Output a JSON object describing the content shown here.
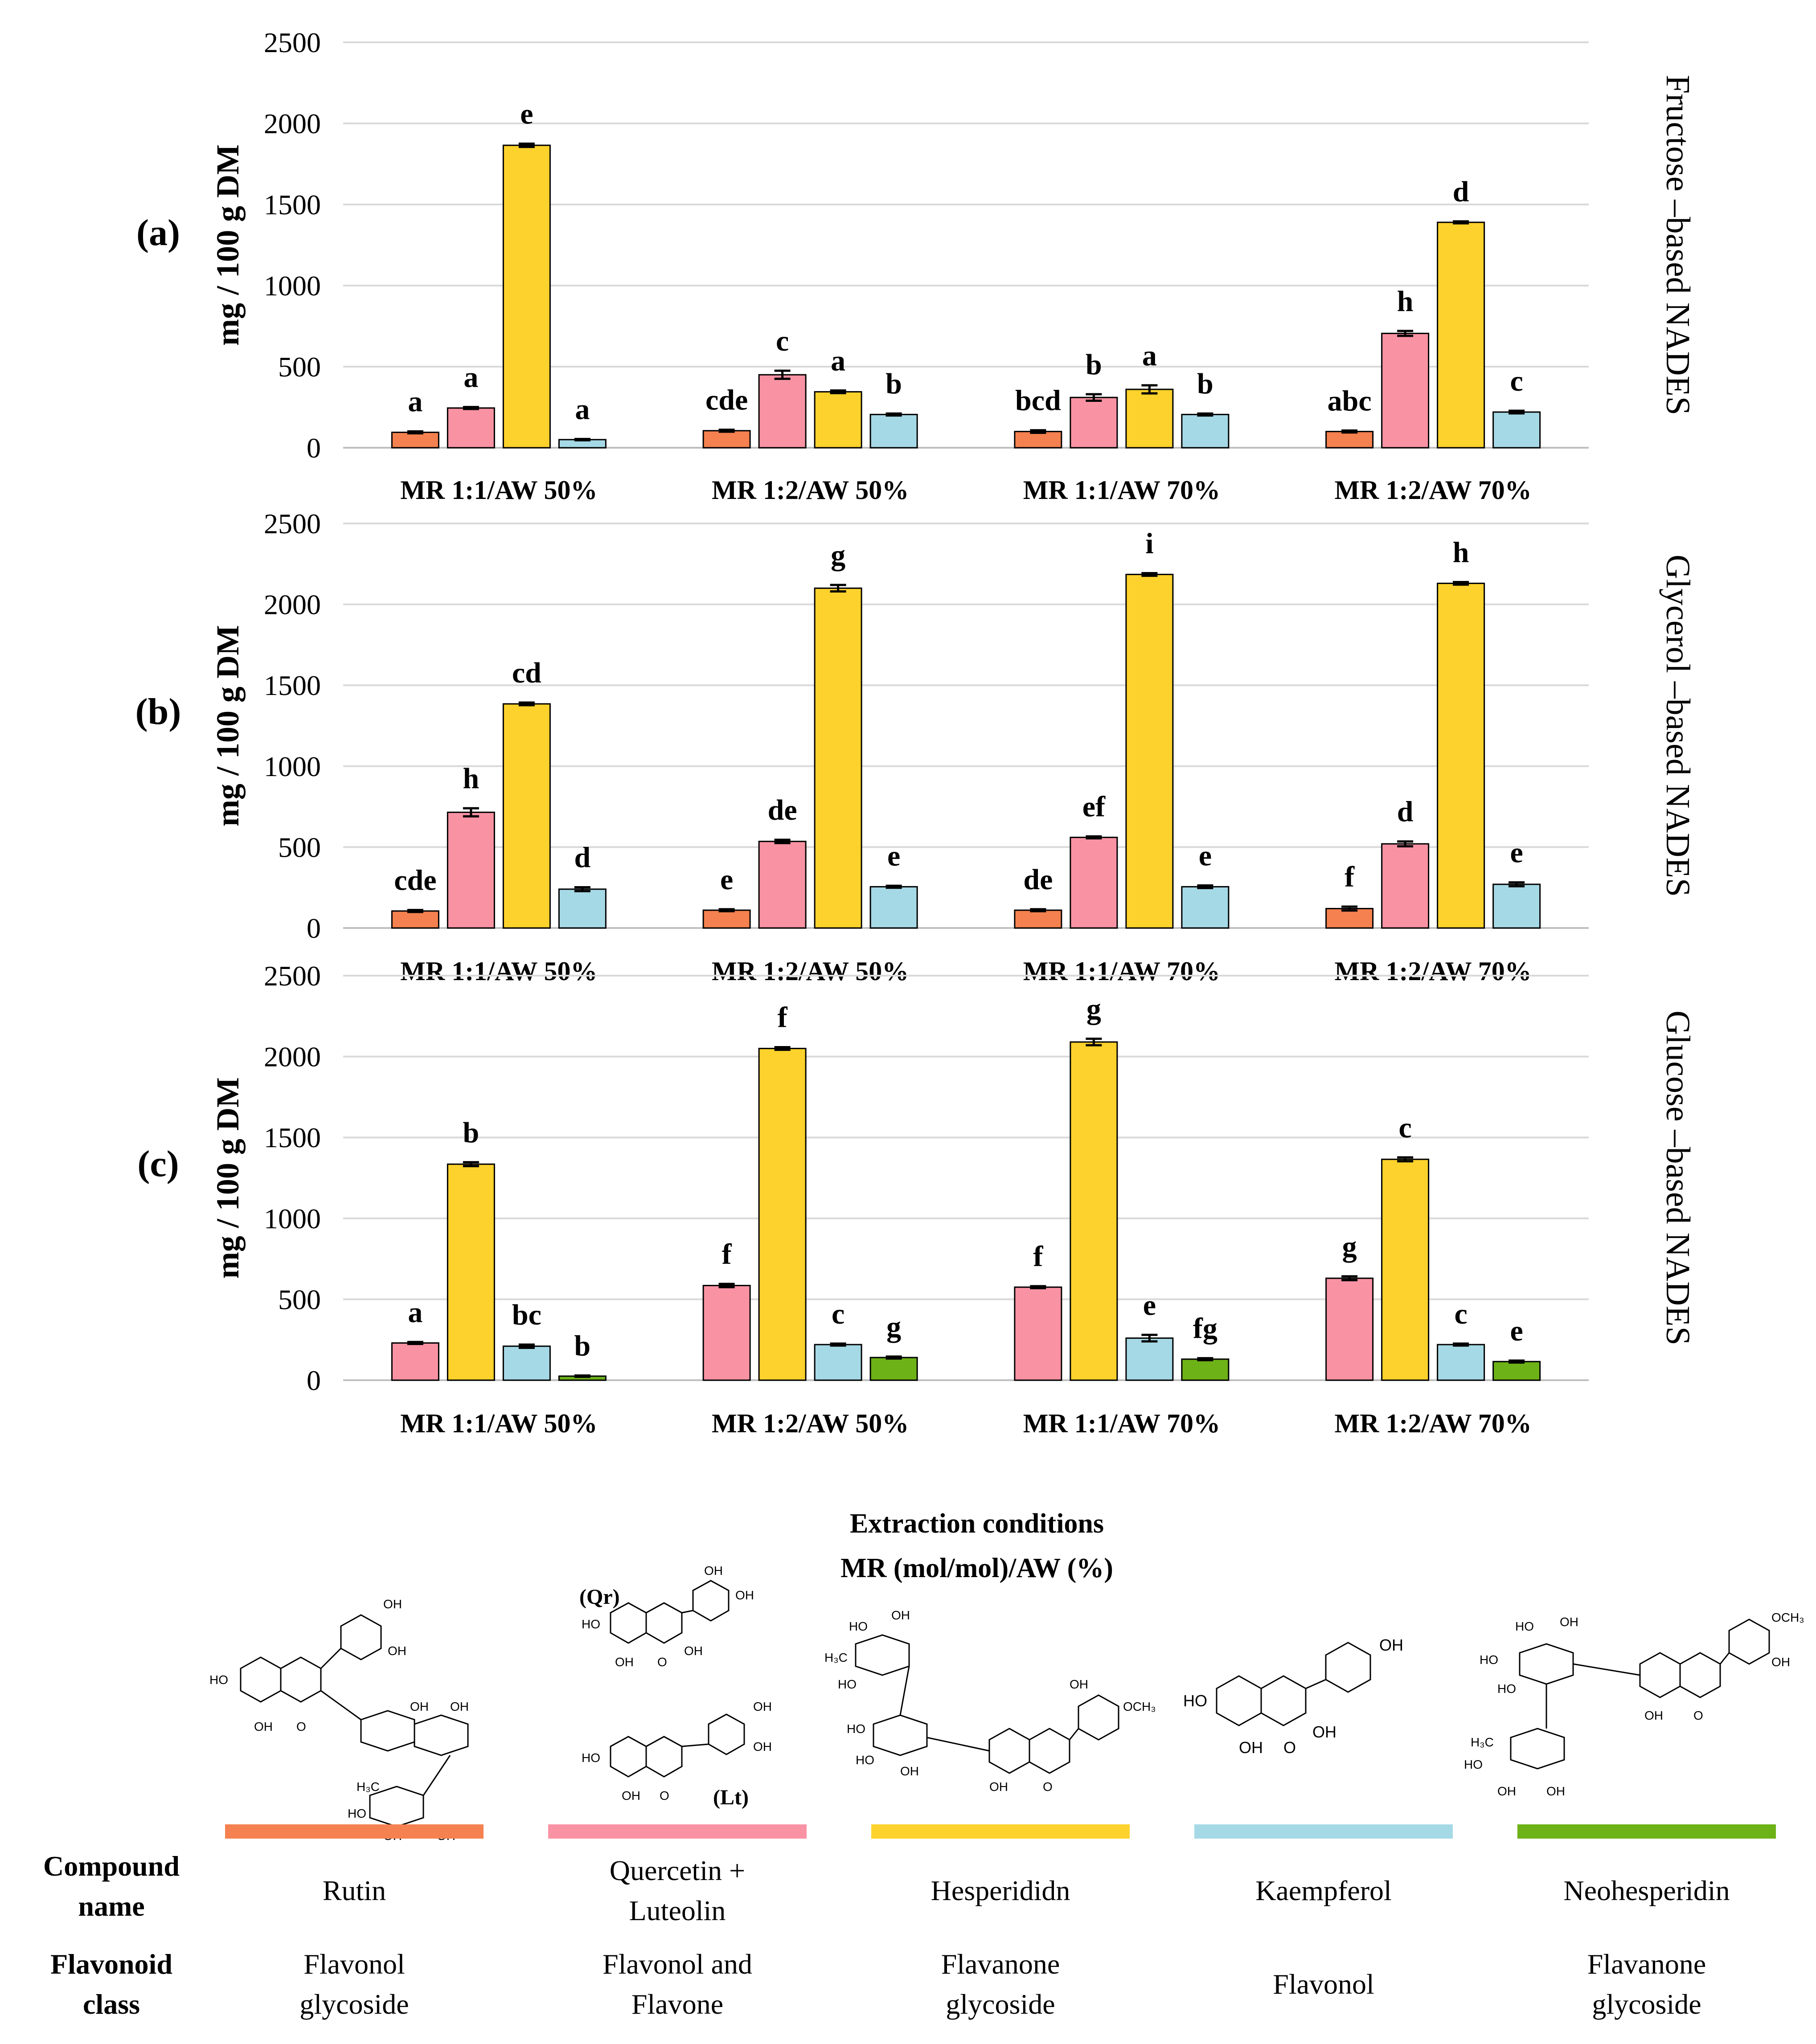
{
  "chart_data": {
    "type": "bar",
    "y_axis": {
      "label": "mg / 100 g DM",
      "ylim": [
        0,
        2500
      ],
      "ticks": [
        "0",
        "500",
        "1000",
        "1500",
        "2000",
        "2500"
      ]
    },
    "x_title_line1": "Extraction conditions",
    "x_title_line2": "MR (mol/mol)/AW (%)",
    "categories": [
      "MR 1:1/AW 50%",
      "MR 1:2/AW 50%",
      "MR 1:1/AW 70%",
      "MR 1:2/AW 70%"
    ],
    "panels": [
      {
        "panel_label": "(a)",
        "side_title": "Fructose –based NADES",
        "series": [
          {
            "name": "Rutin",
            "values": [
              95,
              105,
              100,
              100
            ],
            "errors": [
              6,
              6,
              8,
              6
            ],
            "letters": [
              "a",
              "cde",
              "bcd",
              "abc"
            ]
          },
          {
            "name": "Quercetin + Luteolin",
            "values": [
              245,
              450,
              310,
              705
            ],
            "errors": [
              6,
              25,
              20,
              15
            ],
            "letters": [
              "a",
              "c",
              "b",
              "h"
            ]
          },
          {
            "name": "Hesperididn",
            "values": [
              1865,
              345,
              360,
              1390
            ],
            "errors": [
              10,
              8,
              25,
              6
            ],
            "letters": [
              "e",
              "a",
              "a",
              "d"
            ]
          },
          {
            "name": "Kaempferol",
            "values": [
              50,
              205,
              205,
              220
            ],
            "errors": [
              4,
              6,
              6,
              8
            ],
            "letters": [
              "a",
              "b",
              "b",
              "c"
            ]
          }
        ]
      },
      {
        "panel_label": "(b)",
        "side_title": "Glycerol –based NADES",
        "series": [
          {
            "name": "Rutin",
            "values": [
              105,
              110,
              110,
              120
            ],
            "errors": [
              6,
              6,
              6,
              12
            ],
            "letters": [
              "cde",
              "e",
              "de",
              "f"
            ]
          },
          {
            "name": "Quercetin + Luteolin",
            "values": [
              715,
              535,
              560,
              520
            ],
            "errors": [
              25,
              10,
              6,
              15
            ],
            "letters": [
              "h",
              "de",
              "ef",
              "d"
            ]
          },
          {
            "name": "Hesperididn",
            "values": [
              1385,
              2100,
              2185,
              2130
            ],
            "errors": [
              8,
              20,
              8,
              8
            ],
            "letters": [
              "cd",
              "g",
              "i",
              "h"
            ]
          },
          {
            "name": "Kaempferol",
            "values": [
              240,
              255,
              255,
              270
            ],
            "errors": [
              12,
              6,
              8,
              12
            ],
            "letters": [
              "d",
              "e",
              "e",
              "e"
            ]
          }
        ]
      },
      {
        "panel_label": "(c)",
        "side_title": "Glucose –based NADES",
        "series": [
          {
            "name": "Quercetin + Luteolin",
            "values": [
              230,
              585,
              575,
              630
            ],
            "errors": [
              6,
              10,
              6,
              12
            ],
            "letters": [
              "a",
              "f",
              "f",
              "g"
            ]
          },
          {
            "name": "Hesperididn",
            "values": [
              1335,
              2050,
              2090,
              1365
            ],
            "errors": [
              12,
              8,
              20,
              12
            ],
            "letters": [
              "b",
              "f",
              "g",
              "c"
            ]
          },
          {
            "name": "Kaempferol",
            "values": [
              210,
              220,
              260,
              220
            ],
            "errors": [
              10,
              6,
              20,
              6
            ],
            "letters": [
              "bc",
              "c",
              "e",
              "c"
            ]
          },
          {
            "name": "Neohesperidin",
            "values": [
              25,
              140,
              130,
              115
            ],
            "errors": [
              4,
              6,
              6,
              6
            ],
            "letters": [
              "b",
              "g",
              "fg",
              "e"
            ]
          }
        ]
      }
    ]
  },
  "colors": {
    "Rutin": "#F4814F",
    "Quercetin + Luteolin": "#F993A4",
    "Hesperididn": "#FDD22C",
    "Kaempferol": "#A6D9E6",
    "Neohesperidin": "#6DB217",
    "grid": "#D9D9D9"
  },
  "legend": {
    "row1_head": [
      "Compound",
      "name"
    ],
    "row2_head": [
      "Flavonoid",
      "class"
    ],
    "items": [
      {
        "name": "Rutin",
        "name_lines": [
          "Rutin"
        ],
        "class_lines": [
          "Flavonol",
          "glycoside"
        ]
      },
      {
        "name": "Quercetin + Luteolin",
        "name_lines": [
          "Quercetin +",
          "Luteolin"
        ],
        "class_lines": [
          "Flavonol and",
          "Flavone"
        ]
      },
      {
        "name": "Hesperididn",
        "name_lines": [
          "Hesperididn"
        ],
        "class_lines": [
          "Flavanone",
          "glycoside"
        ]
      },
      {
        "name": "Kaempferol",
        "name_lines": [
          "Kaempferol"
        ],
        "class_lines": [
          "Flavonol"
        ]
      },
      {
        "name": "Neohesperidin",
        "name_lines": [
          "Neohesperidin"
        ],
        "class_lines": [
          "Flavanone",
          "glycoside"
        ]
      }
    ]
  },
  "structures": {
    "qr_tag": "(Qr)",
    "lt_tag": "(Lt)",
    "oh": "OH",
    "ho": "HO",
    "o": "O",
    "ch3": "CH₃",
    "h3c": "H₃C",
    "och3": "OCH₃"
  }
}
